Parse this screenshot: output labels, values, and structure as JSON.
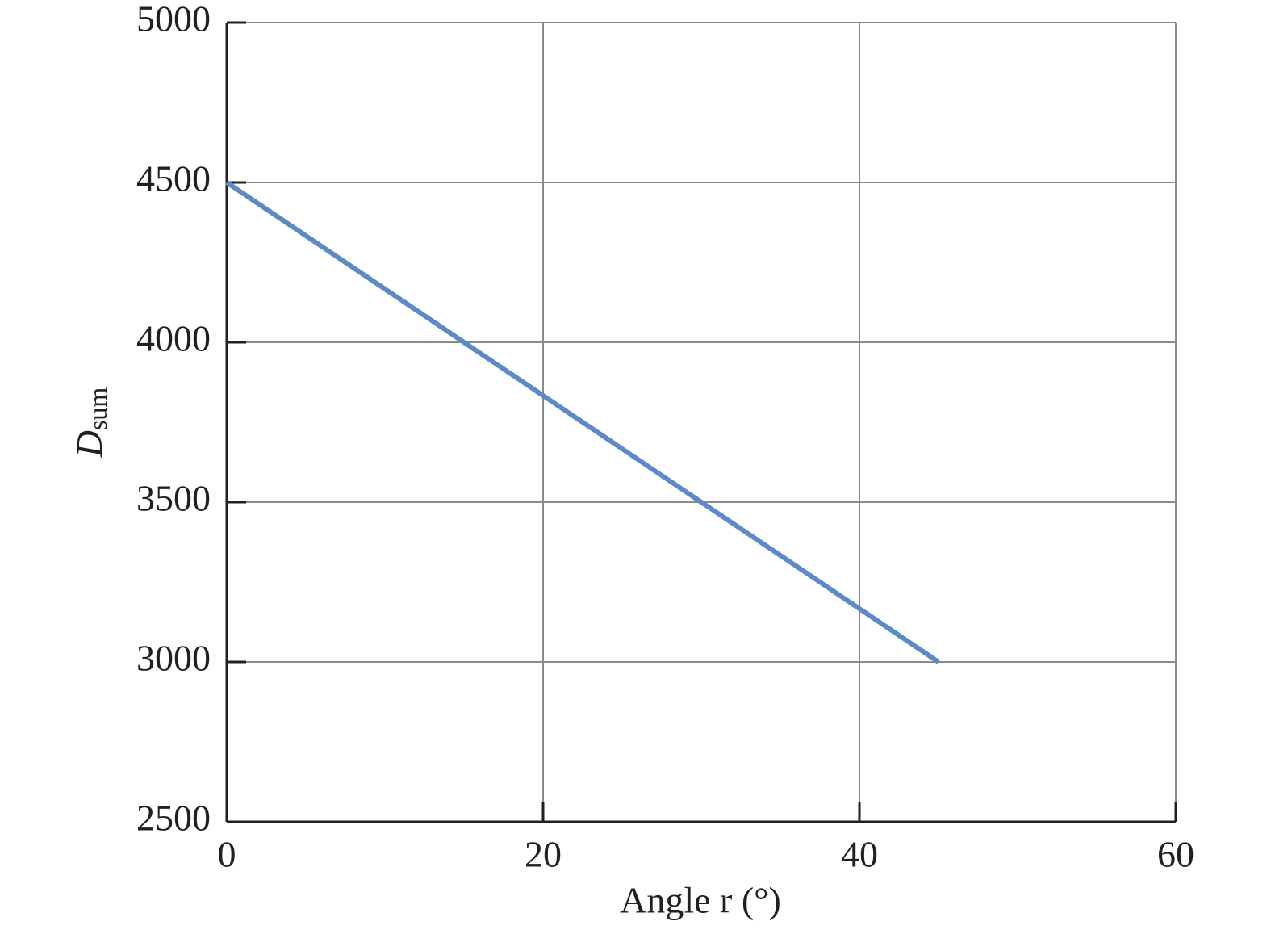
{
  "chart_data": {
    "type": "line",
    "xlabel": "Angle r (°)",
    "ylabel": {
      "text": "D",
      "subscript": "sum"
    },
    "x": [
      0,
      45
    ],
    "series": [
      {
        "color": "#5b8ac6",
        "values": [
          4500,
          3000
        ]
      }
    ],
    "xlim": [
      0,
      60
    ],
    "xticks": [
      0,
      20,
      40,
      60
    ],
    "ylim": [
      2500,
      5000
    ],
    "yticks": [
      2500,
      3000,
      3500,
      4000,
      4500,
      5000
    ],
    "grid": true
  }
}
